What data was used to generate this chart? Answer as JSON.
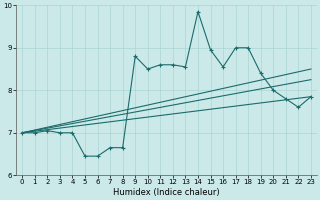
{
  "xlabel": "Humidex (Indice chaleur)",
  "xlim": [
    -0.5,
    23.5
  ],
  "ylim": [
    6,
    10
  ],
  "yticks": [
    6,
    7,
    8,
    9,
    10
  ],
  "xticks": [
    0,
    1,
    2,
    3,
    4,
    5,
    6,
    7,
    8,
    9,
    10,
    11,
    12,
    13,
    14,
    15,
    16,
    17,
    18,
    19,
    20,
    21,
    22,
    23
  ],
  "bg_color": "#cce9e9",
  "line_color": "#1a6b6b",
  "grid_color": "#aad4d4",
  "main_series": [
    7.0,
    7.0,
    7.05,
    7.0,
    7.0,
    6.45,
    6.45,
    6.65,
    6.65,
    8.8,
    8.5,
    8.6,
    8.6,
    8.55,
    9.85,
    8.95,
    8.55,
    9.0,
    9.0,
    8.4,
    8.0,
    7.8,
    7.6,
    7.85
  ],
  "reg_line1_x": [
    0,
    23
  ],
  "reg_line1_y": [
    7.0,
    8.5
  ],
  "reg_line2_x": [
    0,
    23
  ],
  "reg_line2_y": [
    7.0,
    8.25
  ],
  "reg_line3_x": [
    0,
    23
  ],
  "reg_line3_y": [
    7.0,
    7.85
  ]
}
